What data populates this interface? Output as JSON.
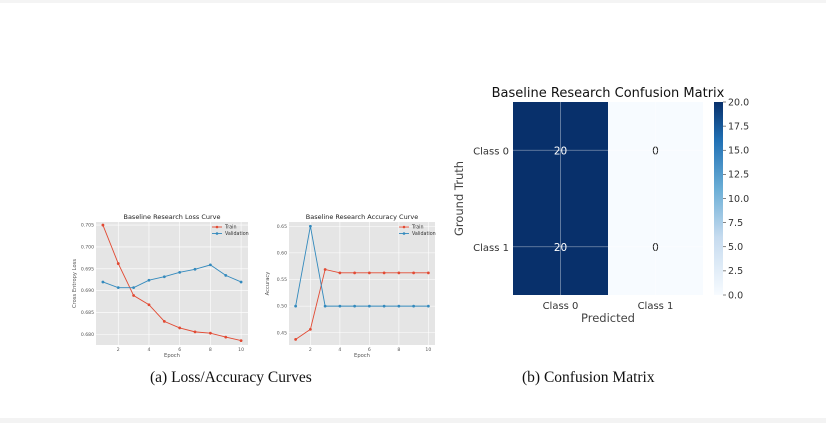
{
  "captions": {
    "a": "(a) Loss/Accuracy Curves",
    "b": "(b) Confusion Matrix"
  },
  "colors": {
    "train": "#E24A33",
    "validation": "#348ABD",
    "panel_bg": "#E5E5E5",
    "cm_dark": "#08306B",
    "cm_light": "#F7FBFF"
  },
  "chart_data": [
    {
      "type": "line",
      "title": "Baseline Research Loss Curve",
      "xlabel": "Epoch",
      "ylabel": "Cross Entropy Loss",
      "xlim": [
        0.55,
        10.45
      ],
      "ylim": [
        0.6776,
        0.7057
      ],
      "xticks": [
        2,
        4,
        6,
        8,
        10
      ],
      "yticks": [
        0.68,
        0.685,
        0.69,
        0.695,
        0.7,
        0.705
      ],
      "ytick_labels": [
        "0.680",
        "0.685",
        "0.690",
        "0.695",
        "0.700",
        "0.705"
      ],
      "grid": true,
      "legend": "top-right",
      "x": [
        1,
        2,
        3,
        4,
        5,
        6,
        7,
        8,
        9,
        10
      ],
      "series": [
        {
          "name": "Train",
          "values": [
            0.705,
            0.6962,
            0.6889,
            0.6868,
            0.683,
            0.6815,
            0.6806,
            0.6803,
            0.6794,
            0.6786
          ]
        },
        {
          "name": "Validation",
          "values": [
            0.692,
            0.6907,
            0.6907,
            0.6924,
            0.6932,
            0.6942,
            0.6949,
            0.6959,
            0.6935,
            0.692
          ]
        }
      ]
    },
    {
      "type": "line",
      "title": "Baseline Research Accuracy Curve",
      "xlabel": "Epoch",
      "ylabel": "Accuracy",
      "xlim": [
        0.55,
        10.45
      ],
      "ylim": [
        0.427,
        0.658
      ],
      "xticks": [
        2,
        4,
        6,
        8,
        10
      ],
      "yticks": [
        0.45,
        0.5,
        0.55,
        0.6,
        0.65
      ],
      "ytick_labels": [
        "0.45",
        "0.50",
        "0.55",
        "0.60",
        "0.65"
      ],
      "grid": true,
      "legend": "top-right",
      "x": [
        1,
        2,
        3,
        4,
        5,
        6,
        7,
        8,
        9,
        10
      ],
      "series": [
        {
          "name": "Train",
          "values": [
            0.4375,
            0.4563,
            0.5688,
            0.5625,
            0.5625,
            0.5625,
            0.5625,
            0.5625,
            0.5625,
            0.5625
          ]
        },
        {
          "name": "Validation",
          "values": [
            0.5,
            0.65,
            0.5,
            0.5,
            0.5,
            0.5,
            0.5,
            0.5,
            0.5,
            0.5
          ]
        }
      ]
    },
    {
      "type": "heatmap",
      "title": "Baseline Research Confusion Matrix",
      "xlabel": "Predicted",
      "ylabel": "Ground Truth",
      "x_categories": [
        "Class 0",
        "Class 1"
      ],
      "y_categories": [
        "Class 0",
        "Class 1"
      ],
      "values": [
        [
          20,
          0
        ],
        [
          20,
          0
        ]
      ],
      "colorbar": {
        "min": 0,
        "max": 20,
        "ticks": [
          0.0,
          2.5,
          5.0,
          7.5,
          10.0,
          12.5,
          15.0,
          17.5,
          20.0
        ],
        "tick_labels": [
          "0.0",
          "2.5",
          "5.0",
          "7.5",
          "10.0",
          "12.5",
          "15.0",
          "17.5",
          "20.0"
        ]
      }
    }
  ]
}
